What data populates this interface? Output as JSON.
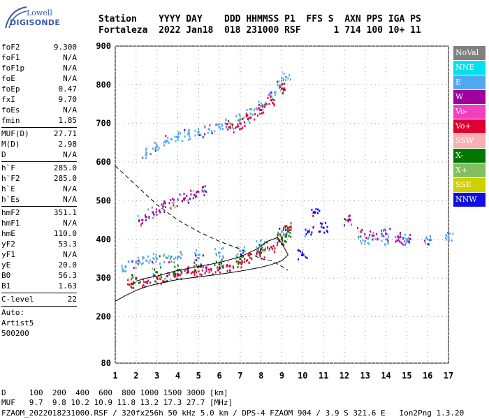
{
  "logo": {
    "line1": "Lowell",
    "line2": "DIGISONDE"
  },
  "header": {
    "row1": "Station    YYYY DAY    DDD HHMMSS P1  FFS S  AXN PPS IGA PS",
    "row2": "Fortaleza  2022 Jan18  018 231000 RSF      1 714 100 10+ 11"
  },
  "params": [
    {
      "name": "foF2",
      "value": "9.300"
    },
    {
      "name": "foF1",
      "value": "N/A"
    },
    {
      "name": "foF1p",
      "value": "N/A"
    },
    {
      "name": "foE",
      "value": "N/A"
    },
    {
      "name": "foEp",
      "value": "0.47"
    },
    {
      "name": "fxI",
      "value": "9.70"
    },
    {
      "name": "foEs",
      "value": "N/A"
    },
    {
      "name": "fmin",
      "value": "1.85"
    },
    {
      "sep": true
    },
    {
      "name": "MUF(D)",
      "value": "27.71"
    },
    {
      "name": "M(D)",
      "value": "2.98"
    },
    {
      "name": "D",
      "value": "N/A"
    },
    {
      "sep": true
    },
    {
      "name": "h`F",
      "value": "285.0"
    },
    {
      "name": "h`F2",
      "value": "285.0"
    },
    {
      "name": "h`E",
      "value": "N/A"
    },
    {
      "name": "h`Es",
      "value": "N/A"
    },
    {
      "sep": true
    },
    {
      "name": "hmF2",
      "value": "351.1"
    },
    {
      "name": "hmF1",
      "value": "N/A"
    },
    {
      "name": "hmE",
      "value": "110.0"
    },
    {
      "name": "yF2",
      "value": "53.3"
    },
    {
      "name": "yF1",
      "value": "N/A"
    },
    {
      "name": "yE",
      "value": "20.0"
    },
    {
      "name": "B0",
      "value": "56.3"
    },
    {
      "name": "B1",
      "value": "1.63"
    },
    {
      "sep": true
    },
    {
      "name": "C-level",
      "value": "22"
    },
    {
      "sep": true
    },
    {
      "text": "Auto:"
    },
    {
      "text": "Artist5"
    },
    {
      "text": "500200"
    }
  ],
  "footer": {
    "line1": "D     100  200  400  600  800 1000 1500 3000 [km]",
    "line2": "MUF   9.7  9.8 10.2 10.9 11.8 13.2 17.3 27.7 [MHz]",
    "line3": "FZAOM_2022018231000.RSF / 320fx256h 50 kHz 5.0 km / DPS-4 FZAOM 904 / 3.9 S 321.6 E   Ion2Png 1.3.20"
  },
  "legend": [
    {
      "label": "NoVal",
      "color": "#808080"
    },
    {
      "label": "NNE",
      "color": "#00e0f0"
    },
    {
      "label": "E",
      "color": "#50a8f0"
    },
    {
      "label": "W",
      "color": "#a000a0"
    },
    {
      "label": "Vo-",
      "color": "#f040c0"
    },
    {
      "label": "Vo+",
      "color": "#e00030"
    },
    {
      "label": "SSW",
      "color": "#f8b0b0"
    },
    {
      "label": "X-",
      "color": "#007800"
    },
    {
      "label": "X+",
      "color": "#80c060"
    },
    {
      "label": "SSE",
      "color": "#d0d000"
    },
    {
      "label": "NNW",
      "color": "#1010e0"
    }
  ],
  "chart_data": {
    "type": "scatter",
    "title": "",
    "xlabel": "",
    "ylabel": "",
    "xlim": [
      1,
      17
    ],
    "ylim": [
      80,
      900
    ],
    "x_ticks": [
      1,
      2,
      3,
      4,
      5,
      6,
      7,
      8,
      9,
      10,
      11,
      12,
      13,
      14,
      15,
      16,
      17
    ],
    "y_ticks": [
      80,
      200,
      300,
      400,
      500,
      600,
      700,
      800,
      900
    ],
    "grid": true,
    "legend_position": "right",
    "clusters": [
      {
        "name": "F2 O-trace",
        "color": "#e00030",
        "x": [
          1.8,
          2.5,
          3.0,
          3.5,
          4.0,
          4.5,
          5.0,
          5.5,
          6.0,
          6.5,
          7.0,
          7.5,
          8.0,
          8.5,
          9.0,
          9.3
        ],
        "y": [
          285,
          290,
          300,
          305,
          310,
          315,
          318,
          322,
          326,
          332,
          340,
          352,
          365,
          380,
          400,
          430
        ]
      },
      {
        "name": "F2 spread",
        "color": "#50a8f0",
        "x": [
          1.5,
          2.0,
          2.5,
          3.0,
          3.5,
          4.0,
          5.0,
          6.0,
          7.0,
          8.0,
          9.0
        ],
        "y": [
          330,
          340,
          345,
          350,
          352,
          355,
          360,
          365,
          370,
          385,
          420
        ]
      },
      {
        "name": "F2 X-trace",
        "color": "#007800",
        "x": [
          2.0,
          3.0,
          4.0,
          5.0,
          6.0,
          7.0,
          8.0,
          9.0,
          9.3
        ],
        "y": [
          300,
          315,
          320,
          330,
          335,
          350,
          375,
          405,
          420
        ]
      },
      {
        "name": "second hop O",
        "color": "#50a8f0",
        "x": [
          2.5,
          3.0,
          3.5,
          4.0,
          4.5,
          5.0,
          5.5,
          6.0,
          6.5,
          7.0,
          7.5,
          8.0,
          8.5,
          9.0,
          9.2
        ],
        "y": [
          625,
          640,
          655,
          665,
          672,
          678,
          685,
          690,
          700,
          710,
          725,
          745,
          770,
          800,
          820
        ]
      },
      {
        "name": "second hop X",
        "color": "#e00030",
        "x": [
          6.5,
          7.0,
          7.5,
          8.0,
          8.5,
          9.0
        ],
        "y": [
          690,
          700,
          715,
          735,
          760,
          790
        ]
      },
      {
        "name": "W echoes",
        "color": "#a000a0",
        "x": [
          2.3,
          2.8,
          3.3,
          3.8,
          4.3,
          4.8,
          5.3
        ],
        "y": [
          450,
          470,
          485,
          495,
          505,
          515,
          525
        ]
      },
      {
        "name": "NNW 10-11 MHz",
        "color": "#1010e0",
        "x": [
          10.0,
          10.3,
          10.6,
          11.0
        ],
        "y": [
          360,
          420,
          470,
          430
        ]
      },
      {
        "name": "W 12-15 MHz",
        "color": "#a000a0",
        "x": [
          12.2,
          12.8,
          13.4,
          14.0,
          14.6,
          15.0
        ],
        "y": [
          450,
          420,
          410,
          415,
          405,
          400
        ]
      },
      {
        "name": "E 13-17 MHz",
        "color": "#50a8f0",
        "x": [
          13.0,
          14.0,
          15.0,
          16.0,
          17.0
        ],
        "y": [
          395,
          400,
          400,
          400,
          405
        ]
      }
    ],
    "curves": [
      {
        "name": "profile upper",
        "style": "solid",
        "x": [
          2.0,
          2.5,
          3.0,
          4.0,
          5.0,
          6.0,
          7.0,
          7.8,
          8.3,
          8.8,
          9.1,
          9.3
        ],
        "y": [
          292,
          300,
          305,
          320,
          330,
          340,
          355,
          375,
          395,
          405,
          380,
          360
        ]
      },
      {
        "name": "profile lower",
        "style": "solid",
        "x": [
          1.0,
          1.5,
          2.0,
          2.5,
          3.0,
          3.5,
          4.0,
          5.0,
          6.0,
          7.0,
          8.0,
          8.5,
          9.0,
          9.3
        ],
        "y": [
          240,
          255,
          268,
          278,
          285,
          291,
          296,
          303,
          310,
          318,
          328,
          335,
          345,
          360
        ]
      },
      {
        "name": "dashed curve",
        "style": "dashed",
        "x": [
          1.0,
          1.5,
          2.0,
          2.5,
          3.0,
          3.5,
          4.0,
          5.0,
          6.0,
          7.0,
          8.0,
          8.5,
          9.0,
          9.3
        ],
        "y": [
          590,
          565,
          540,
          515,
          490,
          470,
          450,
          420,
          395,
          375,
          350,
          345,
          330,
          320
        ]
      }
    ]
  }
}
